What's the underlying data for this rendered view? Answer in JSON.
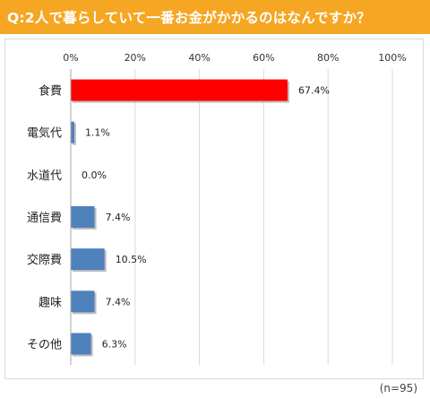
{
  "title": "Q:2人で暮らしていて一番お金がかかるのはなんですか？",
  "sample_note": "(n=95)",
  "colors": {
    "title_bg": "#f5a623",
    "highlight_bar": "#ff0000",
    "bar": "#4f81bd",
    "grid": "#d9d9d9"
  },
  "chart_data": {
    "type": "bar",
    "orientation": "horizontal",
    "title": "Q:2人で暮らしていて一番お金がかかるのはなんですか？",
    "xlabel": "",
    "ylabel": "",
    "xlim": [
      0,
      100
    ],
    "ticks": [
      0,
      20,
      40,
      60,
      80,
      100
    ],
    "tick_labels": [
      "0%",
      "20%",
      "40%",
      "60%",
      "80%",
      "100%"
    ],
    "grid": true,
    "categories": [
      "食費",
      "電気代",
      "水道代",
      "通信費",
      "交際費",
      "趣味",
      "その他"
    ],
    "values": [
      67.4,
      1.1,
      0.0,
      7.4,
      10.5,
      7.4,
      6.3
    ],
    "value_labels": [
      "67.4%",
      "1.1%",
      "0.0%",
      "7.4%",
      "10.5%",
      "7.4%",
      "6.3%"
    ],
    "highlight_index": 0
  }
}
